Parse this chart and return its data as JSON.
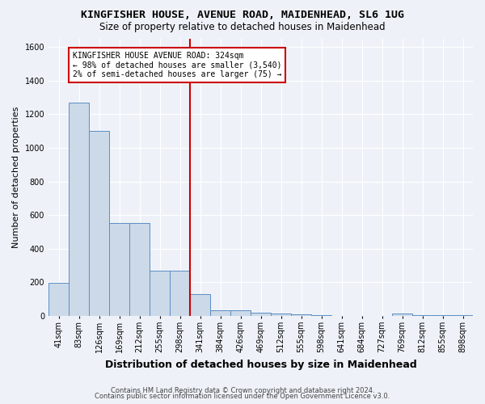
{
  "title": "KINGFISHER HOUSE, AVENUE ROAD, MAIDENHEAD, SL6 1UG",
  "subtitle": "Size of property relative to detached houses in Maidenhead",
  "xlabel": "Distribution of detached houses by size in Maidenhead",
  "ylabel": "Number of detached properties",
  "categories": [
    "41sqm",
    "83sqm",
    "126sqm",
    "169sqm",
    "212sqm",
    "255sqm",
    "298sqm",
    "341sqm",
    "384sqm",
    "426sqm",
    "469sqm",
    "512sqm",
    "555sqm",
    "598sqm",
    "641sqm",
    "684sqm",
    "727sqm",
    "769sqm",
    "812sqm",
    "855sqm",
    "898sqm"
  ],
  "values": [
    197,
    1270,
    1100,
    553,
    553,
    270,
    270,
    130,
    35,
    35,
    20,
    13,
    8,
    5,
    0,
    0,
    0,
    13,
    5,
    3,
    3
  ],
  "bar_color": "#ccd9e8",
  "bar_edge_color": "#5b8ec4",
  "vline_x_idx": 7,
  "vline_color": "#cc0000",
  "annotation_text": "KINGFISHER HOUSE AVENUE ROAD: 324sqm\n← 98% of detached houses are smaller (3,540)\n2% of semi-detached houses are larger (75) →",
  "annotation_box_color": "#ffffff",
  "annotation_box_edge_color": "#cc0000",
  "ylim": [
    0,
    1650
  ],
  "yticks": [
    0,
    200,
    400,
    600,
    800,
    1000,
    1200,
    1400,
    1600
  ],
  "footer1": "Contains HM Land Registry data © Crown copyright and database right 2024.",
  "footer2": "Contains public sector information licensed under the Open Government Licence v3.0.",
  "bg_color": "#eef2f8",
  "grid_color": "#ffffff",
  "title_fontsize": 9.5,
  "subtitle_fontsize": 8.5,
  "xlabel_fontsize": 9,
  "ylabel_fontsize": 8,
  "tick_fontsize": 7,
  "annotation_fontsize": 7,
  "footer_fontsize": 6
}
